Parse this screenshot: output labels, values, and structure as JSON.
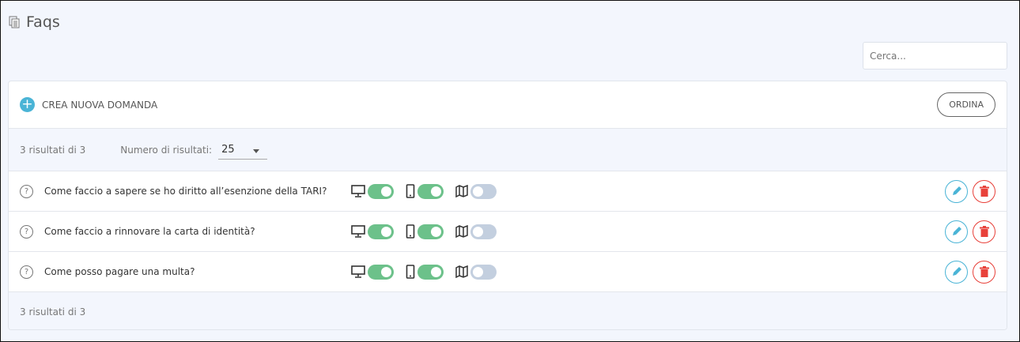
{
  "page": {
    "title": "Faqs",
    "title_icon": "document-copy-icon"
  },
  "search": {
    "placeholder": "Cerca..."
  },
  "toolbar": {
    "create_label": "CREA NUOVA DOMANDA",
    "sort_label": "ORDINA"
  },
  "info": {
    "count": "3 risultati di 3",
    "per_page_label": "Numero di risultati:",
    "per_page_value": "25"
  },
  "faqs": [
    {
      "question": "Come faccio a sapere se ho diritto all’esenzione della TARI?",
      "desktop": true,
      "mobile": true,
      "map": false
    },
    {
      "question": "Come faccio a rinnovare la carta di identità?",
      "desktop": true,
      "mobile": true,
      "map": false
    },
    {
      "question": "Come posso pagare una multa?",
      "desktop": true,
      "mobile": true,
      "map": false
    }
  ],
  "footer": {
    "count": "3 risultati di 3"
  },
  "colors": {
    "accent": "#4ab4d6",
    "toggle_on": "#6cc18a",
    "toggle_off": "#c3cfdf",
    "delete": "#e8413a"
  }
}
